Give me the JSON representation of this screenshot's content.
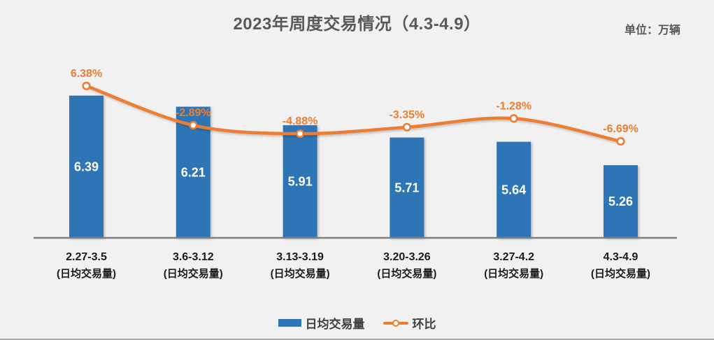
{
  "title": "2023年周度交易情况（4.3-4.9）",
  "unit_label": "单位：万辆",
  "colors": {
    "background": "#f1f1f1",
    "bar": "#2e75b6",
    "line": "#ed7d31",
    "axis": "#7f7f7f",
    "title_text": "#595959",
    "bar_value_text": "#ffffff",
    "pct_label_text": "#ed7d31",
    "x_label_text": "#1a1a1a"
  },
  "chart_data": {
    "type": "bar",
    "subtype": "bar+line-combo",
    "title": "2023年周度交易情况（4.3-4.9）",
    "unit": "单位：万辆",
    "categories": [
      "2.27-3.5",
      "3.6-3.12",
      "3.13-3.19",
      "3.20-3.26",
      "3.27-4.2",
      "4.3-4.9"
    ],
    "category_sublabel": "(日均交易量)",
    "series": [
      {
        "name": "日均交易量",
        "type": "bar",
        "axis": "left",
        "values": [
          6.39,
          6.21,
          5.91,
          5.71,
          5.64,
          5.26
        ]
      },
      {
        "name": "环比",
        "type": "line",
        "axis": "right",
        "values": [
          6.38,
          -2.89,
          -4.88,
          -3.35,
          -1.28,
          -6.69
        ],
        "labels": [
          "6.38%",
          "-2.89%",
          "-4.88%",
          "-3.35%",
          "-1.28%",
          "-6.69%"
        ]
      }
    ],
    "ylim": [
      4.08,
      7.0
    ],
    "y2lim": [
      -8,
      8
    ],
    "grid": false,
    "legend_position": "bottom",
    "xlabel": "",
    "ylabel": ""
  }
}
